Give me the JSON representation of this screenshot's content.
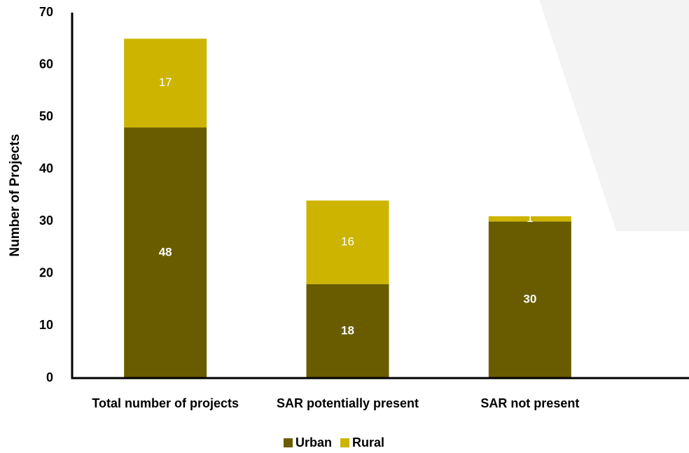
{
  "chart_data": {
    "type": "bar",
    "stacked": true,
    "y_label": "Number of Projects",
    "categories": [
      "Total number of projects",
      "SAR potentially present",
      "SAR not present"
    ],
    "series": [
      {
        "name": "Urban",
        "color": "#695c00",
        "values": [
          48,
          18,
          30
        ]
      },
      {
        "name": "Rural",
        "color": "#ccb400",
        "values": [
          17,
          16,
          1
        ]
      }
    ],
    "ylim": [
      0,
      70
    ],
    "yticks": [
      0,
      10,
      20,
      30,
      40,
      50,
      60,
      70
    ],
    "grid": false,
    "legend": "bottom"
  }
}
